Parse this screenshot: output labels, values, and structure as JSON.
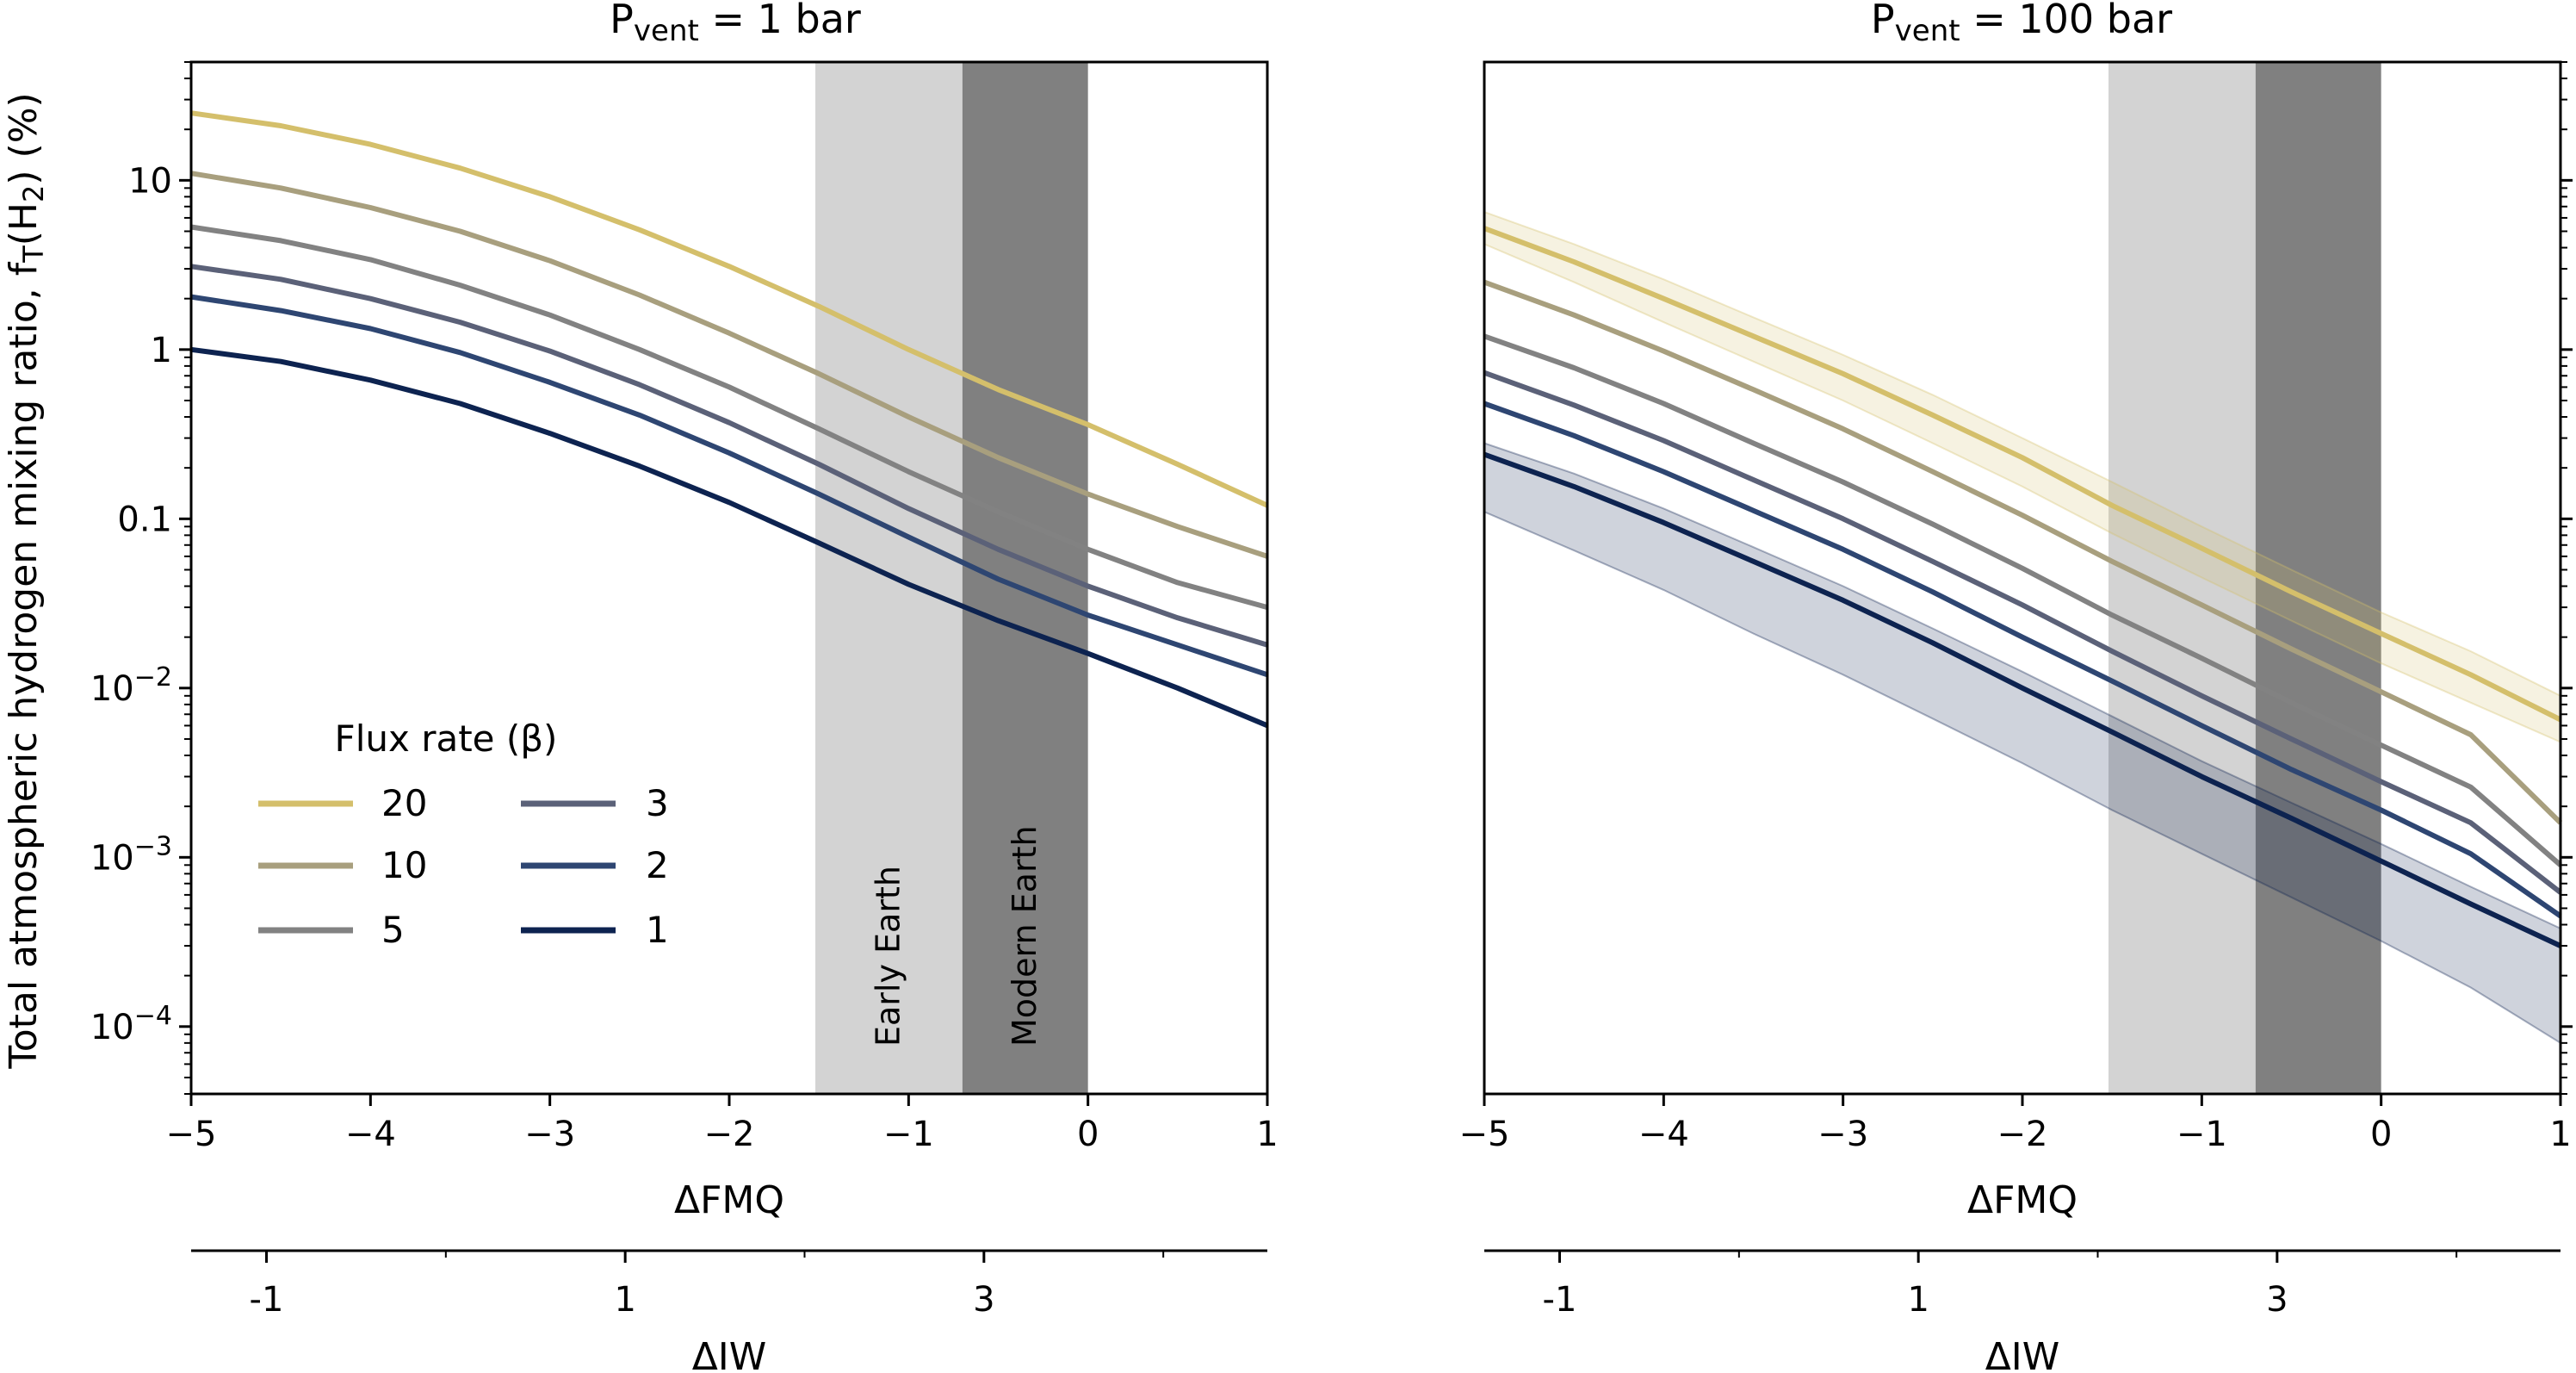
{
  "chart_data": [
    {
      "type": "line",
      "title": "P_vent = 1 bar",
      "title_parts": {
        "main": "P",
        "sub": "vent",
        "rest": " = 1 bar"
      },
      "xlabel": "ΔFMQ",
      "secondary_xlabel": "ΔIW",
      "ylabel": "Total atmospheric hydrogen mixing ratio, f_T(H_2) (%)",
      "ylabel_parts": {
        "a": "Total atmospheric hydrogen mixing ratio, f",
        "b": "T",
        "c": "(H",
        "d": "2",
        "e": ") (%)"
      },
      "yscale": "log",
      "xlim": [
        -5,
        1
      ],
      "ylim": [
        4e-05,
        50
      ],
      "x_ticks": [
        "−5",
        "−4",
        "−3",
        "−2",
        "−1",
        "0",
        "1"
      ],
      "y_ticks": [
        {
          "value": 10,
          "base": "10",
          "exp": ""
        },
        {
          "value": 1,
          "base": "1",
          "exp": ""
        },
        {
          "value": 0.1,
          "base": "0.1",
          "exp": ""
        },
        {
          "value": 0.01,
          "base": "10",
          "exp": "−2"
        },
        {
          "value": 0.001,
          "base": "10",
          "exp": "−3"
        },
        {
          "value": 0.0001,
          "base": "10",
          "exp": "−4"
        }
      ],
      "secondary_x_ticks": [
        "-1",
        "1",
        "3"
      ],
      "legend": {
        "title": "Flux rate (β)",
        "placement": "lower-left"
      },
      "shaded_regions": [
        {
          "label": "Early Earth",
          "x_range": [
            -1.52,
            -0.7
          ],
          "color": "#d3d3d3"
        },
        {
          "label": "Modern Earth",
          "x_range": [
            -0.7,
            0
          ],
          "color": "#808080"
        }
      ],
      "x": [
        -5,
        -4.5,
        -4,
        -3.5,
        -3,
        -2.5,
        -2,
        -1.5,
        -1,
        -0.5,
        0,
        0.5,
        1
      ],
      "series": [
        {
          "name": "20",
          "color": "#d4bf6b",
          "values": [
            25,
            21,
            16.3,
            11.8,
            8,
            5.1,
            3.1,
            1.8,
            1.0,
            0.58,
            0.36,
            0.21,
            0.12
          ]
        },
        {
          "name": "10",
          "color": "#a89f7e",
          "values": [
            11,
            9,
            6.9,
            5.0,
            3.35,
            2.1,
            1.25,
            0.72,
            0.4,
            0.23,
            0.14,
            0.09,
            0.06
          ]
        },
        {
          "name": "5",
          "color": "#828282",
          "values": [
            5.3,
            4.4,
            3.4,
            2.4,
            1.6,
            1.0,
            0.6,
            0.34,
            0.19,
            0.11,
            0.066,
            0.042,
            0.03
          ]
        },
        {
          "name": "3",
          "color": "#5b6178",
          "values": [
            3.1,
            2.6,
            2.0,
            1.45,
            0.98,
            0.62,
            0.37,
            0.21,
            0.115,
            0.066,
            0.04,
            0.026,
            0.018
          ]
        },
        {
          "name": "2",
          "color": "#2e4672",
          "values": [
            2.05,
            1.7,
            1.33,
            0.96,
            0.64,
            0.41,
            0.245,
            0.14,
            0.078,
            0.044,
            0.027,
            0.018,
            0.012
          ]
        },
        {
          "name": "1",
          "color": "#0d2350",
          "values": [
            1.0,
            0.85,
            0.66,
            0.48,
            0.32,
            0.205,
            0.125,
            0.072,
            0.041,
            0.025,
            0.016,
            0.01,
            0.006
          ]
        }
      ]
    },
    {
      "type": "line",
      "title": "P_vent = 100 bar",
      "title_parts": {
        "main": "P",
        "sub": "vent",
        "rest": " = 100 bar"
      },
      "xlabel": "ΔFMQ",
      "secondary_xlabel": "ΔIW",
      "yscale": "log",
      "xlim": [
        -5,
        1
      ],
      "ylim": [
        4e-05,
        50
      ],
      "x_ticks": [
        "−5",
        "−4",
        "−3",
        "−2",
        "−1",
        "0",
        "1"
      ],
      "secondary_x_ticks": [
        "-1",
        "1",
        "3"
      ],
      "shaded_regions": [
        {
          "label": "",
          "x_range": [
            -1.52,
            -0.7
          ],
          "color": "#d3d3d3"
        },
        {
          "label": "",
          "x_range": [
            -0.7,
            0
          ],
          "color": "#808080"
        }
      ],
      "x": [
        -5,
        -4.5,
        -4,
        -3.5,
        -3,
        -2.5,
        -2,
        -1.5,
        -1,
        -0.5,
        0,
        0.5,
        1
      ],
      "series": [
        {
          "name": "20",
          "color": "#d4bf6b",
          "values": [
            5.2,
            3.3,
            2.0,
            1.2,
            0.72,
            0.41,
            0.23,
            0.12,
            0.067,
            0.037,
            0.021,
            0.012,
            0.0065
          ],
          "band_upper": [
            6.5,
            4.2,
            2.6,
            1.55,
            0.93,
            0.54,
            0.3,
            0.165,
            0.09,
            0.05,
            0.028,
            0.0165,
            0.009
          ],
          "band_lower": [
            4.2,
            2.5,
            1.45,
            0.85,
            0.5,
            0.28,
            0.155,
            0.082,
            0.045,
            0.025,
            0.014,
            0.0082,
            0.0048
          ]
        },
        {
          "name": "10",
          "color": "#a89f7e",
          "values": [
            2.5,
            1.6,
            0.98,
            0.58,
            0.34,
            0.19,
            0.105,
            0.056,
            0.031,
            0.017,
            0.0095,
            0.0053,
            0.0016
          ]
        },
        {
          "name": "5",
          "color": "#828282",
          "values": [
            1.2,
            0.78,
            0.48,
            0.28,
            0.165,
            0.093,
            0.051,
            0.027,
            0.015,
            0.0082,
            0.0046,
            0.0026,
            0.0009
          ]
        },
        {
          "name": "3",
          "color": "#5b6178",
          "values": [
            0.73,
            0.47,
            0.29,
            0.17,
            0.1,
            0.056,
            0.031,
            0.0165,
            0.009,
            0.005,
            0.0028,
            0.0016,
            0.00062
          ]
        },
        {
          "name": "2",
          "color": "#2e4672",
          "values": [
            0.48,
            0.31,
            0.19,
            0.112,
            0.066,
            0.037,
            0.02,
            0.011,
            0.006,
            0.0033,
            0.0019,
            0.00105,
            0.00045
          ]
        },
        {
          "name": "1",
          "color": "#0d2350",
          "values": [
            0.24,
            0.155,
            0.095,
            0.056,
            0.033,
            0.0185,
            0.01,
            0.0055,
            0.003,
            0.0017,
            0.00095,
            0.00053,
            0.0003
          ],
          "band_upper": [
            0.28,
            0.185,
            0.115,
            0.068,
            0.04,
            0.0225,
            0.0125,
            0.0068,
            0.0037,
            0.0021,
            0.0012,
            0.00067,
            0.00038
          ],
          "band_lower": [
            0.11,
            0.065,
            0.038,
            0.021,
            0.012,
            0.0066,
            0.0036,
            0.0019,
            0.00105,
            0.00058,
            0.00032,
            0.00017,
            8e-05
          ]
        }
      ]
    }
  ]
}
